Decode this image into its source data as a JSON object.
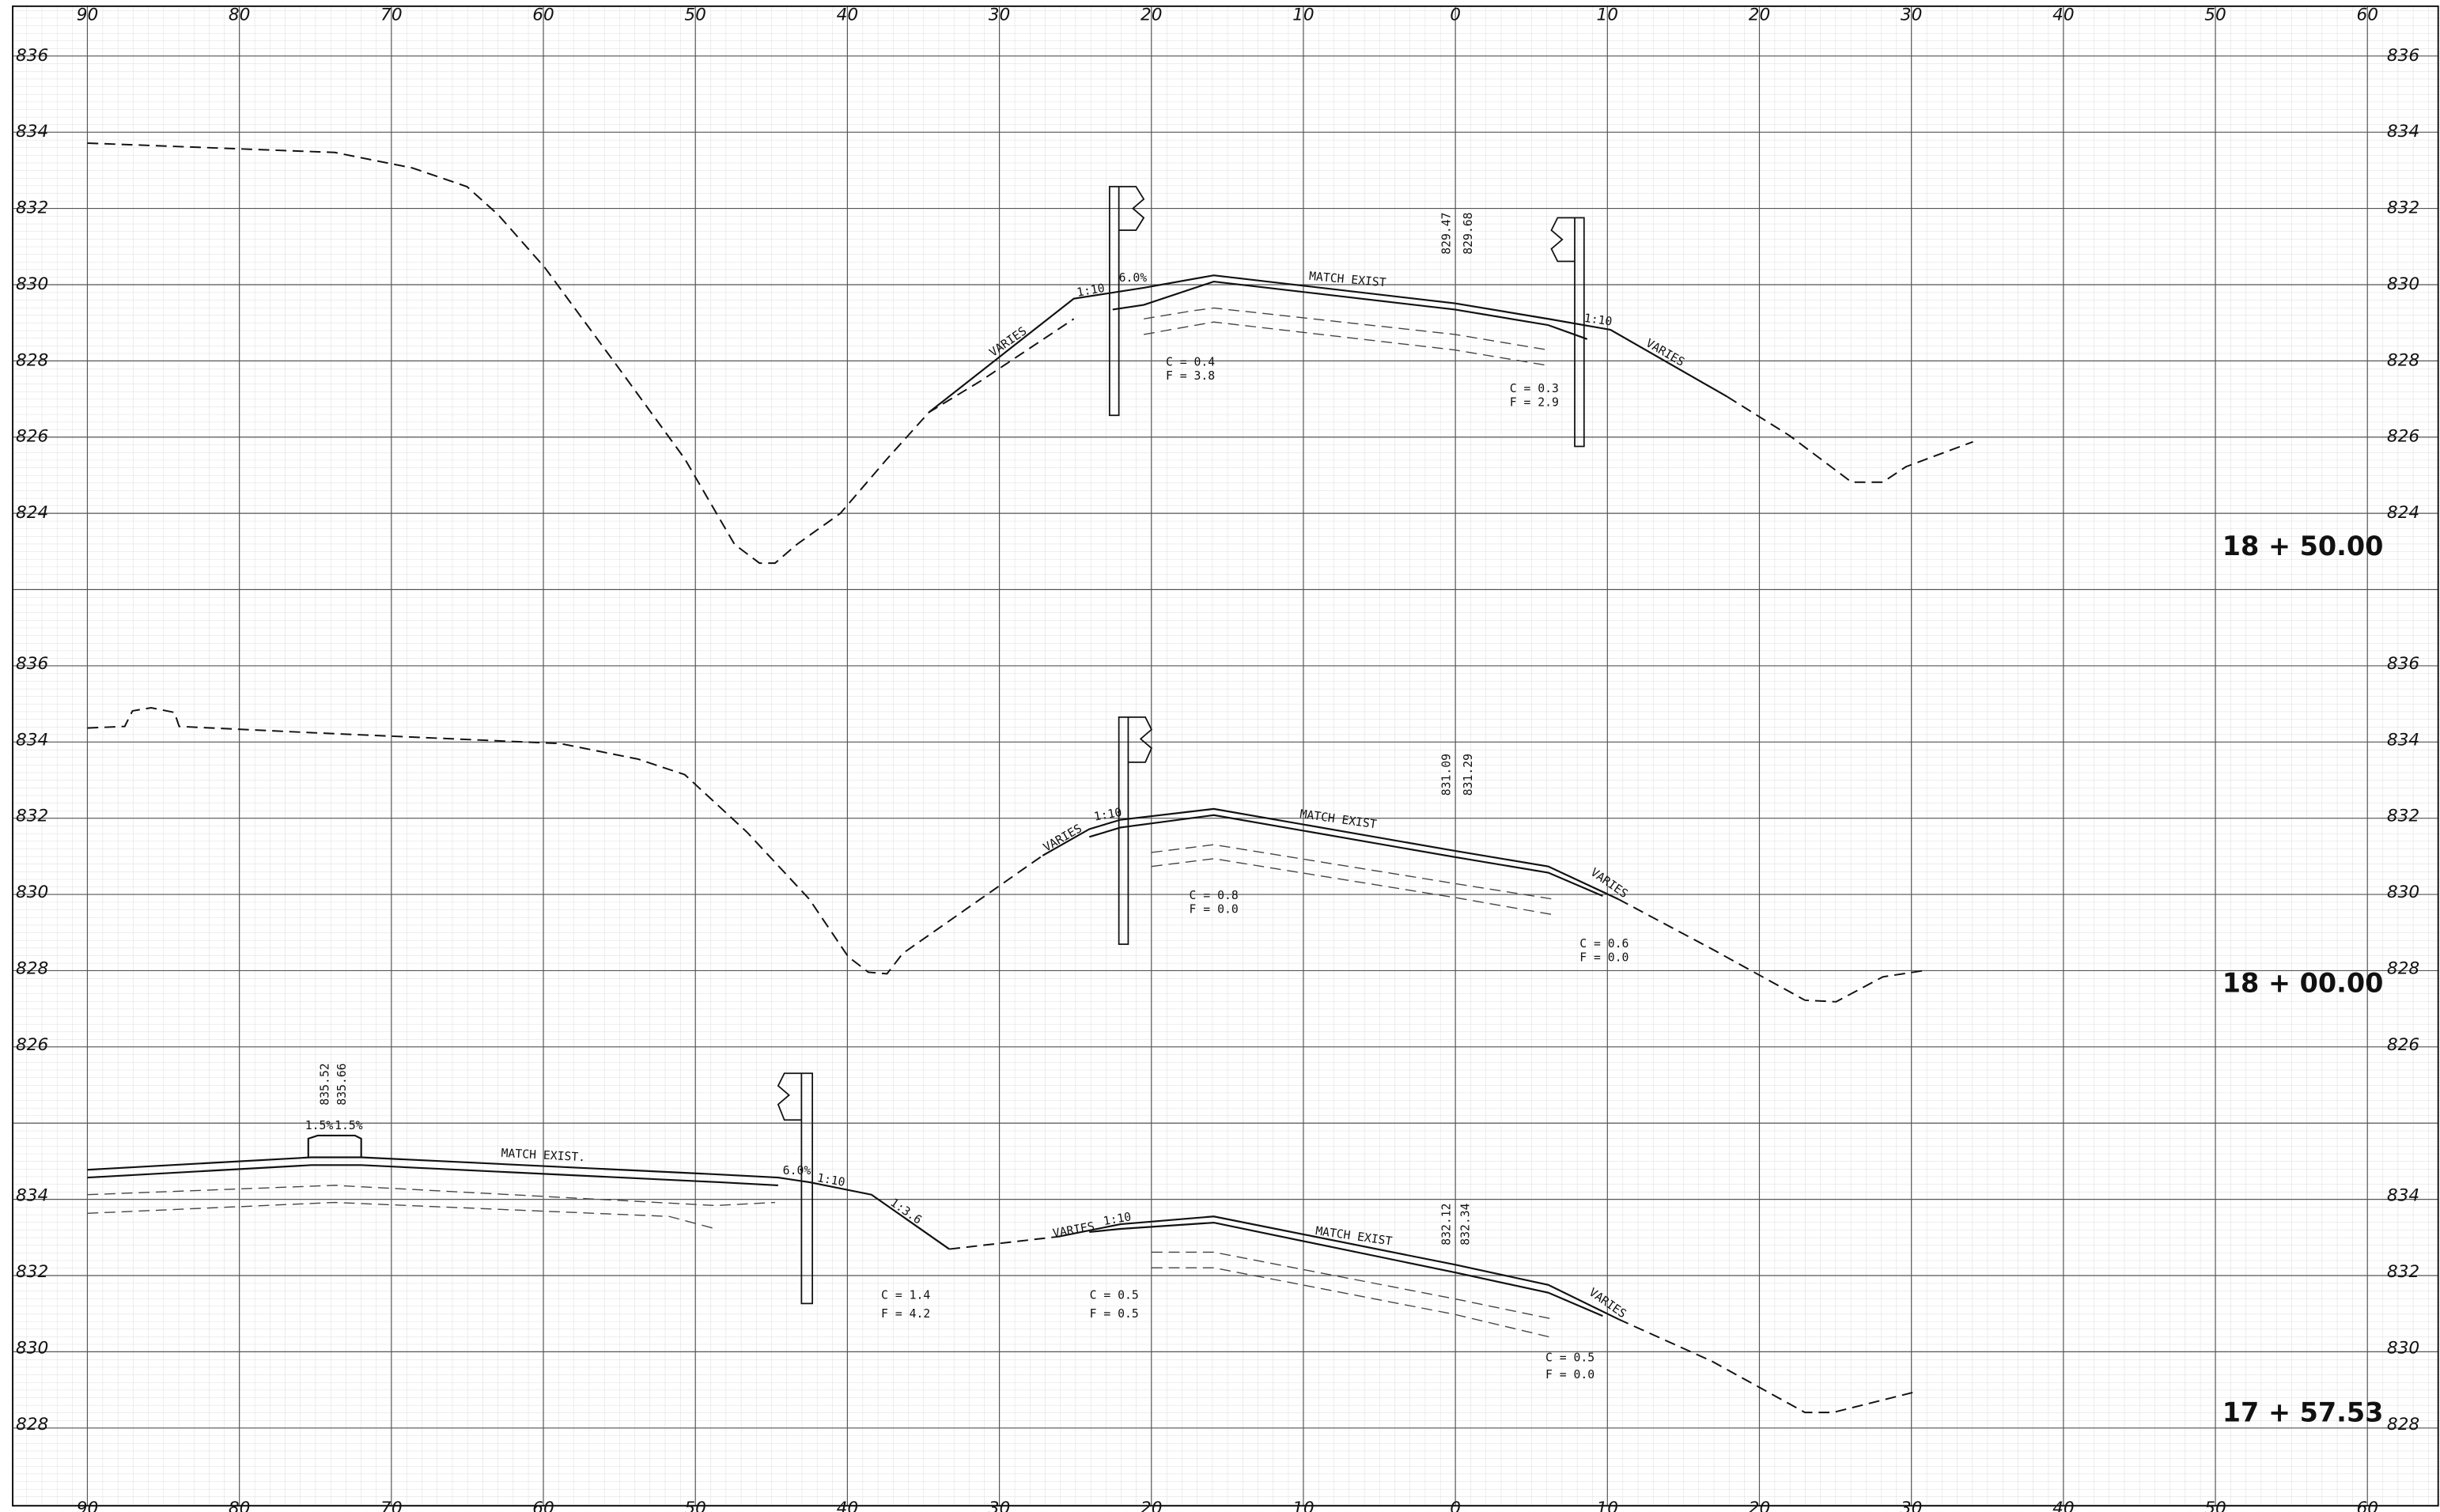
{
  "offset_labels": [
    "90",
    "80",
    "70",
    "60",
    "50",
    "40",
    "30",
    "20",
    "10",
    "0",
    "10",
    "20",
    "30",
    "40",
    "50",
    "60"
  ],
  "sections": [
    {
      "station": "18 + 50.00",
      "elevations": [
        "836",
        "834",
        "832",
        "830",
        "828",
        "826",
        "824"
      ],
      "annotations": [
        "1:10",
        "6.0%",
        "MATCH EXIST",
        "VARIES",
        "C = 0.4",
        "F = 3.8",
        "829.47",
        "829.68",
        "1:10",
        "VARIES",
        "C = 0.3",
        "F = 2.9"
      ]
    },
    {
      "station": "18 + 00.00",
      "elevations": [
        "836",
        "834",
        "832",
        "830",
        "828",
        "826"
      ],
      "annotations": [
        "VARIES",
        "1:10",
        "MATCH EXIST",
        "VARIES",
        "C = 0.8",
        "F = 0.0",
        "831.09",
        "831.29",
        "C = 0.6",
        "F = 0.0"
      ]
    },
    {
      "station": "17 + 57.53",
      "elevations": [
        "834",
        "832",
        "830",
        "828"
      ],
      "annotations": [
        "835.52",
        "835.66",
        "1.5%",
        "1.5%",
        "MATCH EXIST.",
        "6.0%",
        "1:10",
        "1:3.6",
        "VARIES",
        "1:10",
        "MATCH EXIST",
        "832.12",
        "832.34",
        "VARIES",
        "C = 1.4",
        "F = 4.2",
        "C = 0.5",
        "F = 0.5",
        "C = 0.5",
        "F = 0.0"
      ]
    }
  ]
}
